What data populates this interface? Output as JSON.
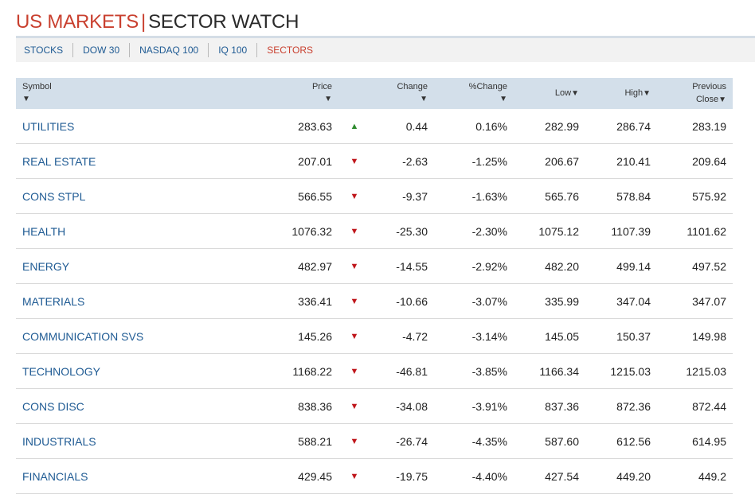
{
  "header": {
    "title_main": "US MARKETS",
    "divider": "|",
    "title_sub": "SECTOR WATCH"
  },
  "tabs": [
    {
      "label": "STOCKS",
      "active": false
    },
    {
      "label": "DOW 30",
      "active": false
    },
    {
      "label": "NASDAQ 100",
      "active": false
    },
    {
      "label": "IQ 100",
      "active": false
    },
    {
      "label": "SECTORS",
      "active": true
    }
  ],
  "table": {
    "columns": {
      "symbol": "Symbol",
      "price": "Price",
      "change": "Change",
      "pct_change": "%Change",
      "low": "Low",
      "high": "High",
      "prev_close_line1": "Previous",
      "prev_close_line2": "Close"
    },
    "sort_glyph": "▼",
    "colors": {
      "up": "#2e8b2e",
      "down": "#c0171c",
      "link": "#1e5a93",
      "accent": "#c9402f",
      "header_bg": "#d3dfea"
    },
    "rows": [
      {
        "symbol": "UTILITIES",
        "price": "283.63",
        "direction": "up",
        "arrow": "▲",
        "change": "0.44",
        "pct_change": "0.16%",
        "low": "282.99",
        "high": "286.74",
        "prev_close": "283.19"
      },
      {
        "symbol": "REAL ESTATE",
        "price": "207.01",
        "direction": "down",
        "arrow": "▼",
        "change": "-2.63",
        "pct_change": "-1.25%",
        "low": "206.67",
        "high": "210.41",
        "prev_close": "209.64"
      },
      {
        "symbol": "CONS STPL",
        "price": "566.55",
        "direction": "down",
        "arrow": "▼",
        "change": "-9.37",
        "pct_change": "-1.63%",
        "low": "565.76",
        "high": "578.84",
        "prev_close": "575.92"
      },
      {
        "symbol": "HEALTH",
        "price": "1076.32",
        "direction": "down",
        "arrow": "▼",
        "change": "-25.30",
        "pct_change": "-2.30%",
        "low": "1075.12",
        "high": "1107.39",
        "prev_close": "1101.62"
      },
      {
        "symbol": "ENERGY",
        "price": "482.97",
        "direction": "down",
        "arrow": "▼",
        "change": "-14.55",
        "pct_change": "-2.92%",
        "low": "482.20",
        "high": "499.14",
        "prev_close": "497.52"
      },
      {
        "symbol": "MATERIALS",
        "price": "336.41",
        "direction": "down",
        "arrow": "▼",
        "change": "-10.66",
        "pct_change": "-3.07%",
        "low": "335.99",
        "high": "347.04",
        "prev_close": "347.07"
      },
      {
        "symbol": "COMMUNICATION SVS",
        "price": "145.26",
        "direction": "down",
        "arrow": "▼",
        "change": "-4.72",
        "pct_change": "-3.14%",
        "low": "145.05",
        "high": "150.37",
        "prev_close": "149.98"
      },
      {
        "symbol": "TECHNOLOGY",
        "price": "1168.22",
        "direction": "down",
        "arrow": "▼",
        "change": "-46.81",
        "pct_change": "-3.85%",
        "low": "1166.34",
        "high": "1215.03",
        "prev_close": "1215.03"
      },
      {
        "symbol": "CONS DISC",
        "price": "838.36",
        "direction": "down",
        "arrow": "▼",
        "change": "-34.08",
        "pct_change": "-3.91%",
        "low": "837.36",
        "high": "872.36",
        "prev_close": "872.44"
      },
      {
        "symbol": "INDUSTRIALS",
        "price": "588.21",
        "direction": "down",
        "arrow": "▼",
        "change": "-26.74",
        "pct_change": "-4.35%",
        "low": "587.60",
        "high": "612.56",
        "prev_close": "614.95"
      },
      {
        "symbol": "FINANCIALS",
        "price": "429.45",
        "direction": "down",
        "arrow": "▼",
        "change": "-19.75",
        "pct_change": "-4.40%",
        "low": "427.54",
        "high": "449.20",
        "prev_close": "449.2"
      }
    ]
  }
}
